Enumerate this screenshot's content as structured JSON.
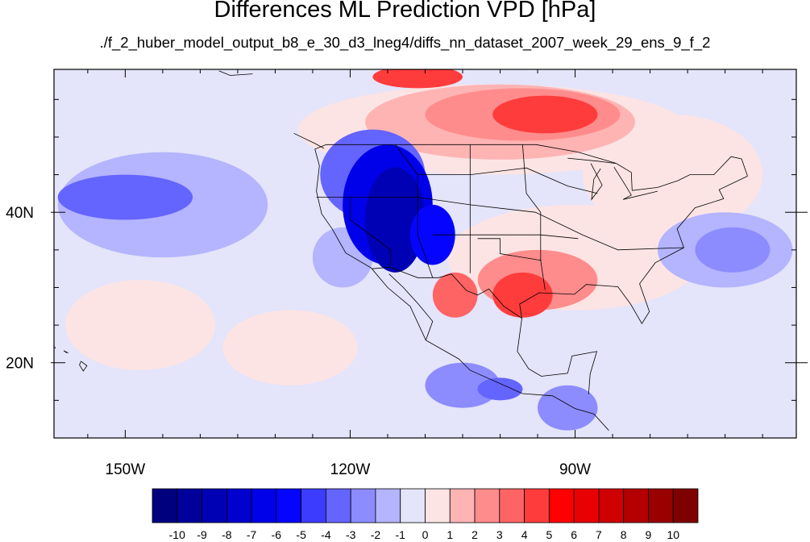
{
  "title": "Differences ML Prediction VPD [hPa]",
  "subtitle": "./f_2_huber_model_output_b8_e_30_d3_lneg4/diffs_nn_dataset_2007_week_29_ens_9_f_2",
  "map": {
    "lon_range": [
      -159.5,
      -60.5
    ],
    "lat_range": [
      10,
      59
    ],
    "projection": "cylindrical-equidistant",
    "coastlines": true,
    "state_borders": true,
    "x_ticks": [
      {
        "lon": -150,
        "label": "150W"
      },
      {
        "lon": -120,
        "label": "120W"
      },
      {
        "lon": -90,
        "label": "90W"
      }
    ],
    "y_ticks": [
      {
        "lat": 20,
        "label": "20N"
      },
      {
        "lat": 40,
        "label": "40N"
      }
    ]
  },
  "colorbar": {
    "levels": [
      "-10",
      "-9",
      "-8",
      "-7",
      "-6",
      "-5",
      "-4",
      "-3",
      "-2",
      "-1",
      "0",
      "1",
      "2",
      "3",
      "4",
      "5",
      "6",
      "7",
      "8",
      "9",
      "10"
    ],
    "colors": [
      "#00007f",
      "#00009a",
      "#0000b4",
      "#0000cf",
      "#0000e9",
      "#0505ff",
      "#3c3cff",
      "#6464ff",
      "#8c8cff",
      "#b4b4ff",
      "#e4e4fa",
      "#fce4e4",
      "#ffb4b4",
      "#ff8c8c",
      "#ff6464",
      "#ff3c3c",
      "#ff0000",
      "#e90000",
      "#cf0000",
      "#b40000",
      "#9a0000",
      "#7f0000"
    ]
  },
  "field_regions": [
    {
      "level": 1,
      "lon": -101,
      "lat": 51,
      "rx": 26,
      "ry": 6
    },
    {
      "level": 1,
      "lon": -77,
      "lat": 45,
      "rx": 12,
      "ry": 8
    },
    {
      "level": 1,
      "lon": -148,
      "lat": 25,
      "rx": 10,
      "ry": 6
    },
    {
      "level": 1,
      "lon": -128,
      "lat": 22,
      "rx": 9,
      "ry": 5
    },
    {
      "level": 2,
      "lon": -100,
      "lat": 52,
      "rx": 18,
      "ry": 5
    },
    {
      "level": 3,
      "lon": -97,
      "lat": 53,
      "rx": 13,
      "ry": 3.5
    },
    {
      "level": 5,
      "lon": -94,
      "lat": 53,
      "rx": 7,
      "ry": 2.5
    },
    {
      "level": 5,
      "lon": -111,
      "lat": 58,
      "rx": 6,
      "ry": 1.5
    },
    {
      "level": 1,
      "lon": -90,
      "lat": 34,
      "rx": 17,
      "ry": 7
    },
    {
      "level": 3,
      "lon": -95,
      "lat": 31,
      "rx": 8,
      "ry": 4
    },
    {
      "level": 5,
      "lon": -97,
      "lat": 29,
      "rx": 4,
      "ry": 3
    },
    {
      "level": 4,
      "lon": -106,
      "lat": 29,
      "rx": 3,
      "ry": 3
    },
    {
      "level": 1,
      "lon": -73,
      "lat": 43,
      "rx": 6,
      "ry": 4
    },
    {
      "level": -1,
      "lon": -145,
      "lat": 41,
      "rx": 14,
      "ry": 7
    },
    {
      "level": -3,
      "lon": -150,
      "lat": 42,
      "rx": 9,
      "ry": 3
    },
    {
      "level": -1,
      "lon": -70,
      "lat": 35,
      "rx": 9,
      "ry": 5
    },
    {
      "level": -2,
      "lon": -69,
      "lat": 35,
      "rx": 5,
      "ry": 3
    },
    {
      "level": -2,
      "lon": -105,
      "lat": 17,
      "rx": 5,
      "ry": 3
    },
    {
      "level": -3,
      "lon": -100,
      "lat": 16.5,
      "rx": 3,
      "ry": 1.5
    },
    {
      "level": -2,
      "lon": -91,
      "lat": 14,
      "rx": 4,
      "ry": 3
    },
    {
      "level": -1,
      "lon": -121,
      "lat": 34,
      "rx": 4,
      "ry": 4
    },
    {
      "level": -3,
      "lon": -117,
      "lat": 45,
      "rx": 7,
      "ry": 6
    },
    {
      "level": -6,
      "lon": -115,
      "lat": 41,
      "rx": 6,
      "ry": 8
    },
    {
      "level": -8,
      "lon": -114,
      "lat": 39,
      "rx": 4,
      "ry": 7
    },
    {
      "level": -5,
      "lon": -109,
      "lat": 37,
      "rx": 3,
      "ry": 4
    }
  ]
}
